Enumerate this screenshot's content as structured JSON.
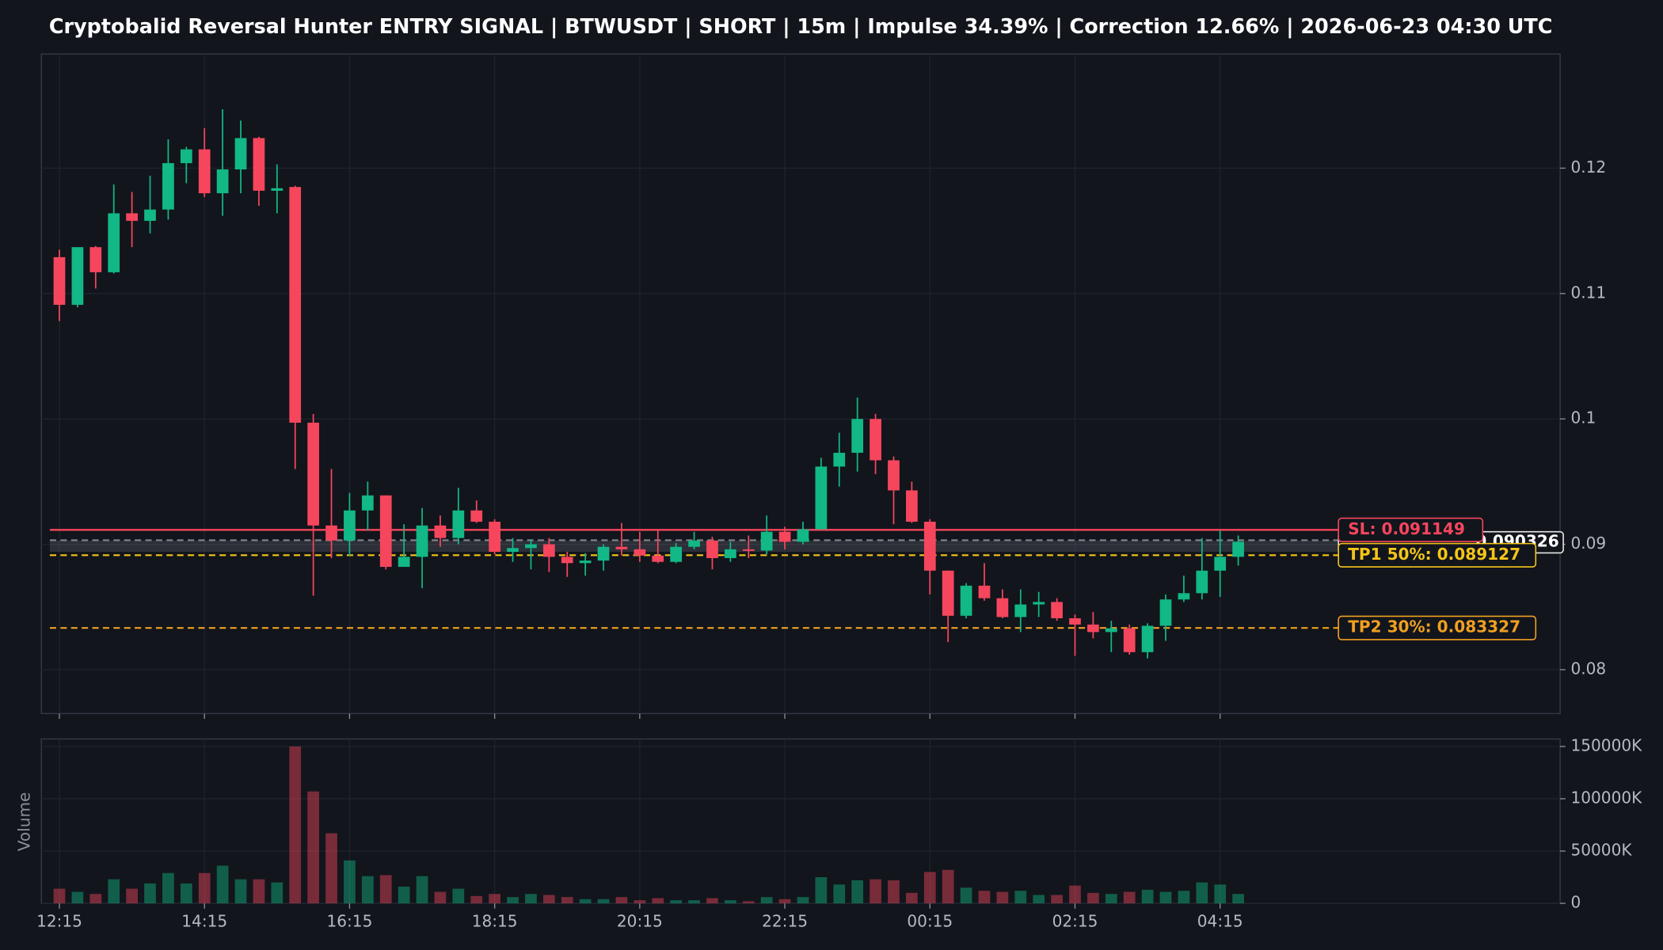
{
  "chart_data": {
    "type": "candlestick",
    "title": "Cryptobalid Reversal Hunter ENTRY SIGNAL | BTWUSDT | SHORT | 15m | Impulse 34.39% | Correction 12.66% | 2026-06-23 04:30 UTC",
    "categories": [
      "12:15",
      null,
      null,
      null,
      null,
      null,
      null,
      null,
      "14:15",
      null,
      null,
      null,
      null,
      null,
      null,
      null,
      "16:15",
      null,
      null,
      null,
      null,
      null,
      null,
      null,
      "18:15",
      null,
      null,
      null,
      null,
      null,
      null,
      null,
      "20:15",
      null,
      null,
      null,
      null,
      null,
      null,
      null,
      "22:15",
      null,
      null,
      null,
      null,
      null,
      null,
      null,
      "00:15",
      null,
      null,
      null,
      null,
      null,
      null,
      null,
      "02:15",
      null,
      null,
      null,
      null,
      null,
      null,
      null,
      "04:15",
      null
    ],
    "open": [
      0.1129,
      0.1091,
      0.1137,
      0.1117,
      0.1164,
      0.1158,
      0.1167,
      0.1204,
      0.1215,
      0.118,
      0.1199,
      0.1224,
      0.1182,
      0.1185,
      0.0997,
      0.0915,
      0.0903,
      0.0927,
      0.0939,
      0.0882,
      0.089,
      0.0915,
      0.0905,
      0.0927,
      0.0918,
      0.0894,
      0.0897,
      0.09,
      0.089,
      0.0885,
      0.0887,
      0.0898,
      0.0896,
      0.0891,
      0.0886,
      0.0898,
      0.0903,
      0.0889,
      0.0896,
      0.0895,
      0.091,
      0.0902,
      0.0912,
      0.0962,
      0.0973,
      0.1,
      0.0967,
      0.0943,
      0.0918,
      0.0879,
      0.0843,
      0.0867,
      0.0857,
      0.0842,
      0.0852,
      0.0854,
      0.0841,
      0.0836,
      0.083,
      0.0833,
      0.0814,
      0.0835,
      0.0856,
      0.0861,
      0.0879,
      0.089
    ],
    "high": [
      0.1135,
      0.1137,
      0.1138,
      0.1187,
      0.1181,
      0.1194,
      0.1223,
      0.1217,
      0.1232,
      0.1247,
      0.1238,
      0.1225,
      0.1203,
      0.1186,
      0.1004,
      0.096,
      0.0941,
      0.095,
      0.0939,
      0.0916,
      0.0929,
      0.0923,
      0.0945,
      0.0935,
      0.092,
      0.0905,
      0.0904,
      0.0905,
      0.0894,
      0.0893,
      0.09,
      0.0917,
      0.091,
      0.0912,
      0.0901,
      0.091,
      0.0906,
      0.0902,
      0.0907,
      0.0923,
      0.0914,
      0.0918,
      0.0969,
      0.0989,
      0.1017,
      0.1004,
      0.097,
      0.095,
      0.092,
      0.0879,
      0.0869,
      0.0885,
      0.0864,
      0.0864,
      0.0862,
      0.0857,
      0.0844,
      0.0846,
      0.0839,
      0.0836,
      0.0837,
      0.086,
      0.0875,
      0.0905,
      0.0911,
      0.0907
    ],
    "low": [
      0.1078,
      0.1089,
      0.1104,
      0.1116,
      0.1137,
      0.1148,
      0.1159,
      0.1188,
      0.1177,
      0.1162,
      0.118,
      0.117,
      0.1164,
      0.096,
      0.0859,
      0.0889,
      0.0891,
      0.0911,
      0.088,
      0.0882,
      0.0865,
      0.0898,
      0.09,
      0.0917,
      0.0892,
      0.0886,
      0.088,
      0.0878,
      0.0874,
      0.0875,
      0.0879,
      0.0891,
      0.0886,
      0.0885,
      0.0885,
      0.0896,
      0.088,
      0.0886,
      0.0889,
      0.0892,
      0.0896,
      0.09,
      0.0912,
      0.0946,
      0.0958,
      0.0956,
      0.0916,
      0.0917,
      0.086,
      0.0822,
      0.0841,
      0.0855,
      0.0841,
      0.083,
      0.0842,
      0.0839,
      0.0811,
      0.0825,
      0.0814,
      0.0812,
      0.0809,
      0.0823,
      0.0854,
      0.0856,
      0.0858,
      0.0883
    ],
    "close": [
      0.1091,
      0.1137,
      0.1117,
      0.1164,
      0.1158,
      0.1167,
      0.1204,
      0.1215,
      0.118,
      0.1199,
      0.1224,
      0.1182,
      0.1184,
      0.0997,
      0.0915,
      0.0903,
      0.0927,
      0.0939,
      0.0882,
      0.089,
      0.0915,
      0.0905,
      0.0927,
      0.0918,
      0.0894,
      0.0897,
      0.09,
      0.089,
      0.0885,
      0.0887,
      0.0898,
      0.0896,
      0.0891,
      0.0886,
      0.0898,
      0.0903,
      0.0889,
      0.0896,
      0.0895,
      0.091,
      0.0902,
      0.0912,
      0.0962,
      0.0973,
      0.1,
      0.0967,
      0.0943,
      0.0918,
      0.0879,
      0.0843,
      0.0867,
      0.0857,
      0.0842,
      0.0852,
      0.0854,
      0.0841,
      0.0836,
      0.083,
      0.0833,
      0.0814,
      0.0835,
      0.0856,
      0.0861,
      0.0879,
      0.089,
      0.0902
    ],
    "up_color": "#12b886",
    "down_color": "#f6465d",
    "ylim": [
      0.0765,
      0.1291
    ],
    "yticks": [
      0.08,
      0.09,
      0.1,
      0.11,
      0.12
    ],
    "grid": true,
    "entry_zone": [
      0.0894,
      0.0903
    ],
    "levels": [
      {
        "label": "0.090326",
        "value": 0.090326,
        "color": "#e6e6e6",
        "style": "dashed"
      },
      {
        "label": "SL: 0.091149",
        "value": 0.091149,
        "color": "#f6465d",
        "style": "solid"
      },
      {
        "label": "TP1 50%: 0.089127",
        "value": 0.089127,
        "color": "#f5c518",
        "style": "dashed"
      },
      {
        "label": "TP2 30%: 0.083327",
        "value": 0.083327,
        "color": "#f0a020",
        "style": "dashed"
      }
    ],
    "volume": {
      "label": "Volume",
      "values": [
        14000000,
        11000000,
        9000000,
        23000000,
        14000000,
        19000000,
        29000000,
        19000000,
        29000000,
        36000000,
        23000000,
        23000000,
        20000000,
        150000000,
        107000000,
        67000000,
        41000000,
        26000000,
        27000000,
        16000000,
        26000000,
        11000000,
        14000000,
        7000000,
        9000000,
        6000000,
        9000000,
        8000000,
        6000000,
        4000000,
        4000000,
        6000000,
        3000000,
        5000000,
        3000000,
        3000000,
        5000000,
        3000000,
        2000000,
        6000000,
        4000000,
        6000000,
        25000000,
        18000000,
        22000000,
        23000000,
        22000000,
        10000000,
        30000000,
        32000000,
        15000000,
        12000000,
        11000000,
        12000000,
        8000000,
        8000000,
        17000000,
        10000000,
        9000000,
        11000000,
        13000000,
        11000000,
        12000000,
        20000000,
        18000000,
        9000000
      ],
      "ylim": [
        0,
        157100000
      ],
      "yticks": [
        0,
        {
          "value": 50000000,
          "label": "50000K"
        },
        {
          "value": 100000000,
          "label": "100000K"
        },
        {
          "value": 150000000,
          "label": "150000K"
        }
      ]
    }
  }
}
